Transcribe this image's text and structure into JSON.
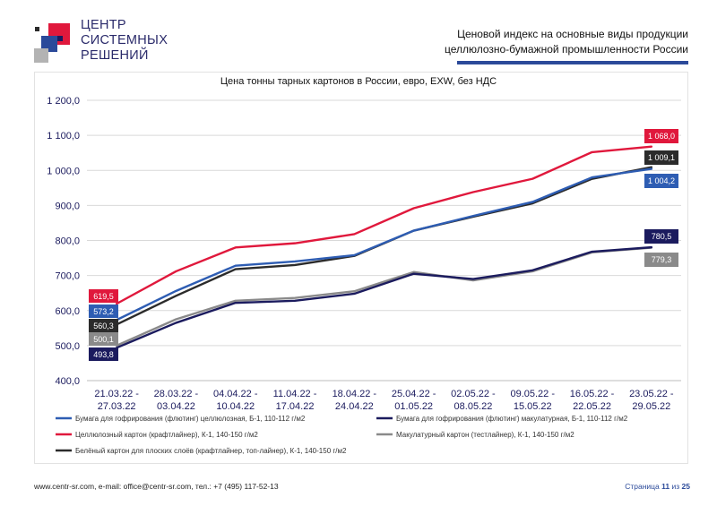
{
  "header": {
    "logo_lines": [
      "ЦЕНТР",
      "СИСТЕМНЫХ",
      "РЕШЕНИЙ"
    ],
    "title_line1": "Ценовой индекс на основные виды продукции",
    "title_line2": "целлюлозно-бумажной промышленности России",
    "colors": {
      "accent": "#2b4a9a",
      "brand_red": "#e0183c"
    }
  },
  "chart_data": {
    "type": "line",
    "title": "Цена тонны тарных картонов в России, евро, EXW, без НДС",
    "xlabel": "",
    "ylabel": "",
    "ylim": [
      400,
      1200
    ],
    "yticks": [
      "400,0",
      "500,0",
      "600,0",
      "700,0",
      "800,0",
      "900,0",
      "1 000,0",
      "1 100,0",
      "1 200,0"
    ],
    "grid": true,
    "legend_position": "bottom",
    "categories": [
      [
        "21.03.22 -",
        "27.03.22"
      ],
      [
        "28.03.22 -",
        "03.04.22"
      ],
      [
        "04.04.22 -",
        "10.04.22"
      ],
      [
        "11.04.22 -",
        "17.04.22"
      ],
      [
        "18.04.22 -",
        "24.04.22"
      ],
      [
        "25.04.22 -",
        "01.05.22"
      ],
      [
        "02.05.22 -",
        "08.05.22"
      ],
      [
        "09.05.22 -",
        "15.05.22"
      ],
      [
        "16.05.22 -",
        "22.05.22"
      ],
      [
        "23.05.22 -",
        "29.05.22"
      ]
    ],
    "series": [
      {
        "name": "Бумага для гофрирования (флютинг) целлюлозная, Б-1, 110-112 г/м2",
        "color": "#2e5db3",
        "values": [
          573.2,
          656,
          728,
          740,
          758,
          828,
          870,
          910,
          980,
          1004.2
        ],
        "first_label": "573,2",
        "last_label": "1 004,2"
      },
      {
        "name": "Бумага для гофрирования (флютинг) макулатурная, Б-1, 110-112 г/м2",
        "color": "#1b1b5e",
        "values": [
          493.8,
          565,
          622,
          628,
          648,
          705,
          690,
          715,
          768,
          780.5
        ],
        "first_label": "493,8",
        "last_label": "780,5"
      },
      {
        "name": "Целлюлозный картон (крафтлайнер), К-1, 140-150 г/м2",
        "color": "#e0183c",
        "values": [
          619.5,
          712,
          780,
          792,
          818,
          892,
          938,
          976,
          1052,
          1068.0
        ],
        "first_label": "619,5",
        "last_label": "1 068,0"
      },
      {
        "name": "Макулатурный картон (тестлайнер), К-1, 140-150 г/м2",
        "color": "#8a8a8a",
        "values": [
          500.1,
          575,
          628,
          636,
          655,
          710,
          686,
          712,
          766,
          779.3
        ],
        "first_label": "500,1",
        "last_label": "779,3"
      },
      {
        "name": "Белёный картон для плоских слоёв (крафтлайнер, топ-лайнер), К-1, 140-150 г/м2",
        "color": "#2b2b2b",
        "values": [
          560.3,
          642,
          718,
          730,
          756,
          828,
          868,
          906,
          976,
          1009.1
        ],
        "first_label": "560,3",
        "last_label": "1 009,1"
      }
    ]
  },
  "footer": {
    "contacts": "www.centr-sr.com, e-mail: office@centr-sr.com, тел.: +7 (495) 117-52-13",
    "page_word": "Страница",
    "page_current": "11",
    "page_of": "из",
    "page_total": "25"
  }
}
